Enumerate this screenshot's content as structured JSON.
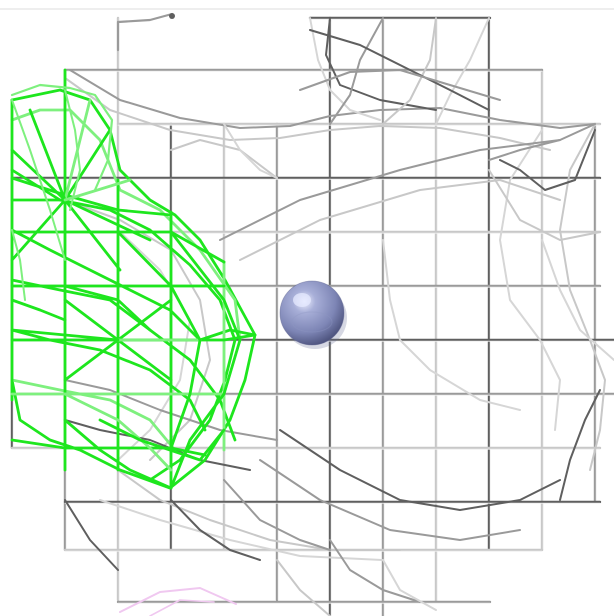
{
  "scene": {
    "background_color": "#ffffff",
    "colors": {
      "grid_dark": "#5f5f5f",
      "grid_mid": "#9a9a9a",
      "grid_light": "#c8c8c8",
      "mesh_light": "#d6d6d6",
      "mesh_green": "#1ee61e",
      "mesh_green_light": "#7ef07e",
      "mesh_pink": "#f0c8f0",
      "sphere_main": "#8f97c4",
      "sphere_shadow": "#5b628f",
      "sphere_highlight": "#e6e9ff"
    },
    "objects": [
      "grey-lattice-mesh",
      "green-density-mesh",
      "pink-fragment",
      "blue-sphere"
    ]
  }
}
